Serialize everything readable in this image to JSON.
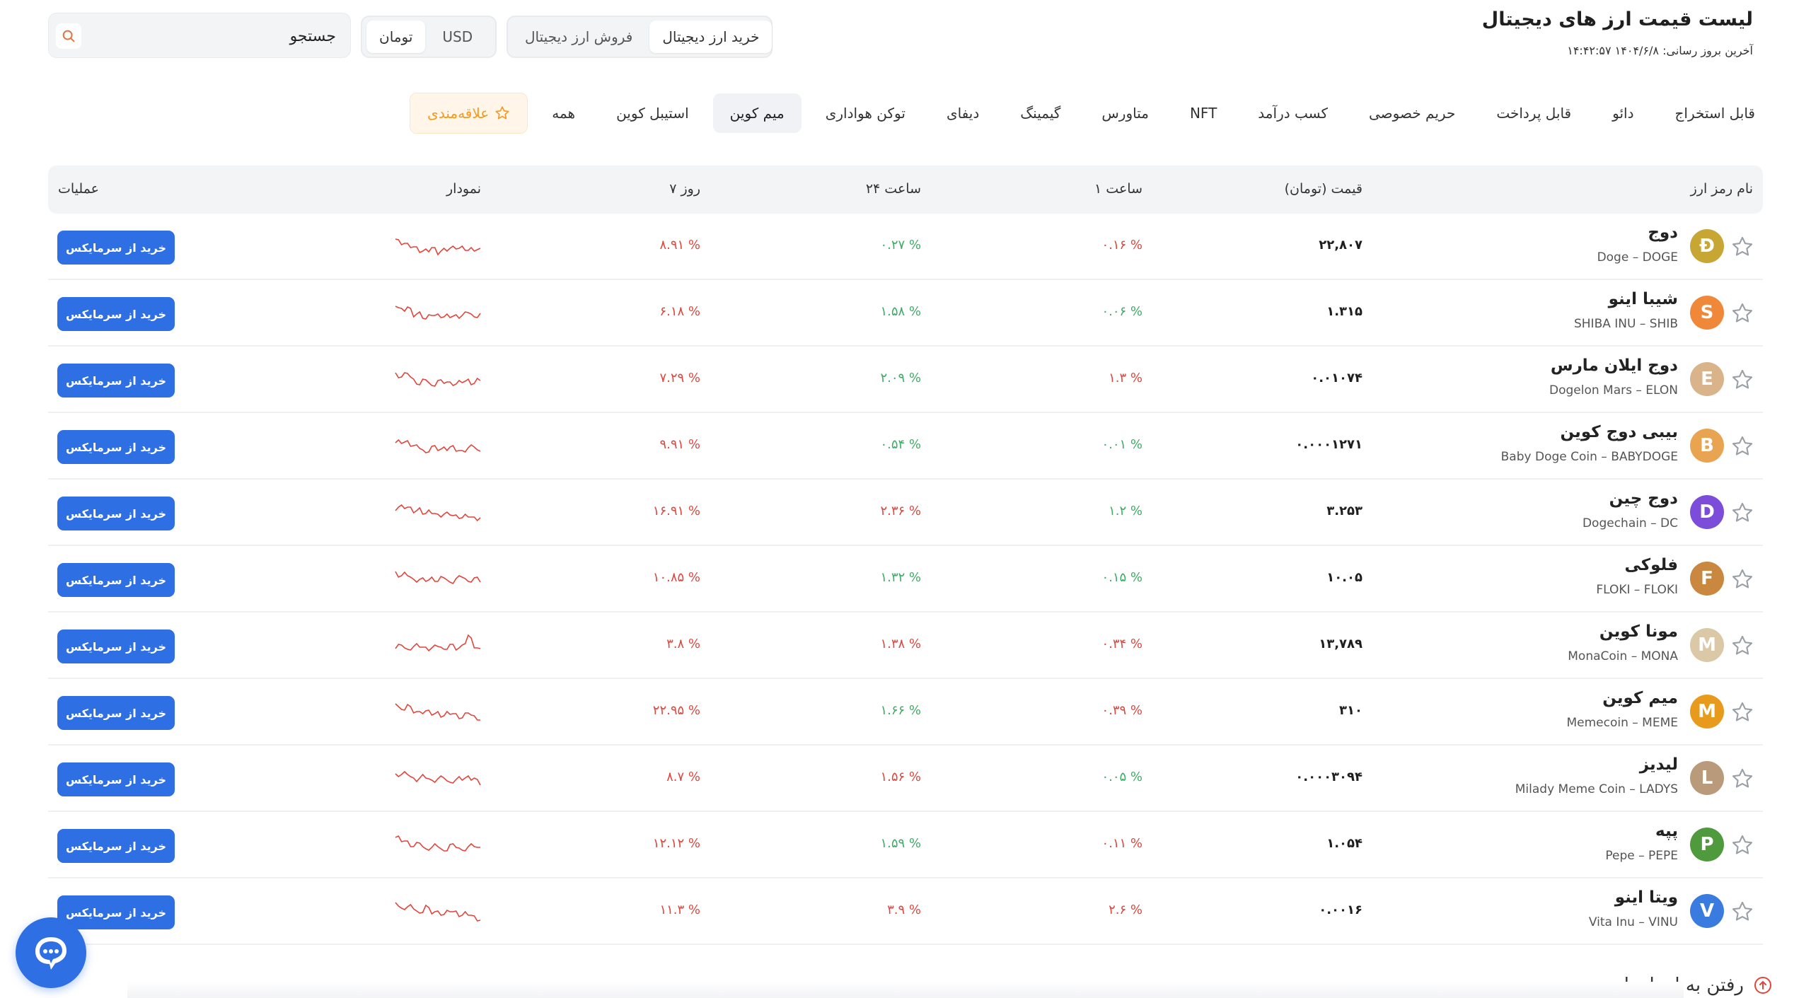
{
  "header": {
    "title": "لیست قیمت ارز های دیجیتال",
    "last_update_label": "آخرین بروز رسانی: ۱۴۰۴/۶/۸ ۱۴:۴۲:۵۷",
    "trade_toggle": {
      "buy": "خرید ارز دیجیتال",
      "sell": "فروش ارز دیجیتال"
    },
    "currency_toggle": {
      "toman": "تومان",
      "usd": "USD"
    },
    "search_placeholder": "جستجو"
  },
  "tabs": [
    {
      "label": "علاقه‌مندی",
      "icon": "star-icon",
      "style": "favorite"
    },
    {
      "label": "همه"
    },
    {
      "label": "استیبل کوین"
    },
    {
      "label": "میم کوین",
      "active": true
    },
    {
      "label": "توکن هواداری"
    },
    {
      "label": "دیفای"
    },
    {
      "label": "گیمینگ"
    },
    {
      "label": "متاورس"
    },
    {
      "label": "NFT"
    },
    {
      "label": "کسب درآمد"
    },
    {
      "label": "حریم خصوصی"
    },
    {
      "label": "قابل پرداخت"
    },
    {
      "label": "دائو"
    },
    {
      "label": "قابل استخراج"
    }
  ],
  "table": {
    "headers": {
      "name": "نام رمز ارز",
      "price": "قیمت (تومان)",
      "h1": "۱ ساعت",
      "h24": "۲۴ ساعت",
      "d7": "۷ روز",
      "chart": "نمودار",
      "ops": "عملیات"
    },
    "buy_label": "خرید از سرمایکس",
    "rows": [
      {
        "fa": "دوج",
        "en": "Doge – DOGE",
        "price": "۲۲,۸۰۷",
        "h1": "۰.۱۶ %",
        "h1_dir": "neg",
        "h24": "۰.۲۷ %",
        "h24_dir": "pos",
        "d7": "۸.۹۱ %",
        "d7_dir": "neg",
        "icon": "doge-icon",
        "icon_color": "#c8a634",
        "icon_glyph": "Ð"
      },
      {
        "fa": "شیبا اینو",
        "en": "SHIBA INU – SHIB",
        "price": "۱.۳۱۵",
        "h1": "۰.۰۶ %",
        "h1_dir": "pos",
        "h24": "۱.۵۸ %",
        "h24_dir": "pos",
        "d7": "۶.۱۸ %",
        "d7_dir": "neg",
        "icon": "shib-icon",
        "icon_color": "#f0883a",
        "icon_glyph": "S"
      },
      {
        "fa": "دوج ایلان مارس",
        "en": "Dogelon Mars – ELON",
        "price": "۰.۰۱۰۷۴",
        "h1": "۱.۳ %",
        "h1_dir": "neg",
        "h24": "۲.۰۹ %",
        "h24_dir": "pos",
        "d7": "۷.۲۹ %",
        "d7_dir": "neg",
        "icon": "elon-icon",
        "icon_color": "#d9b48a",
        "icon_glyph": "E"
      },
      {
        "fa": "بیبی دوج کوین",
        "en": "Baby Doge Coin – BABYDOGE",
        "price": "۰.۰۰۰۱۲۷۱",
        "h1": "۰.۰۱ %",
        "h1_dir": "pos",
        "h24": "۰.۵۴ %",
        "h24_dir": "pos",
        "d7": "۹.۹۱ %",
        "d7_dir": "neg",
        "icon": "babydoge-icon",
        "icon_color": "#e8a451",
        "icon_glyph": "B"
      },
      {
        "fa": "دوج چین",
        "en": "Dogechain – DC",
        "price": "۳.۲۵۳",
        "h1": "۱.۲ %",
        "h1_dir": "pos",
        "h24": "۲.۳۶ %",
        "h24_dir": "neg",
        "d7": "۱۶.۹۱ %",
        "d7_dir": "neg",
        "icon": "dogechain-icon",
        "icon_color": "#7b4dd8",
        "icon_glyph": "D"
      },
      {
        "fa": "فلوکی",
        "en": "FLOKI – FLOKI",
        "price": "۱۰.۰۵",
        "h1": "۰.۱۵ %",
        "h1_dir": "pos",
        "h24": "۱.۳۲ %",
        "h24_dir": "pos",
        "d7": "۱۰.۸۵ %",
        "d7_dir": "neg",
        "icon": "floki-icon",
        "icon_color": "#c9873f",
        "icon_glyph": "F"
      },
      {
        "fa": "مونا کوین",
        "en": "MonaCoin – MONA",
        "price": "۱۳,۷۸۹",
        "h1": "۰.۳۴ %",
        "h1_dir": "neg",
        "h24": "۱.۳۸ %",
        "h24_dir": "neg",
        "d7": "۳.۸ %",
        "d7_dir": "neg",
        "icon": "mona-icon",
        "icon_color": "#dac8a6",
        "icon_glyph": "M"
      },
      {
        "fa": "میم کوین",
        "en": "Memecoin – MEME",
        "price": "۳۱۰",
        "h1": "۰.۳۹ %",
        "h1_dir": "neg",
        "h24": "۱.۶۶ %",
        "h24_dir": "pos",
        "d7": "۲۲.۹۵ %",
        "d7_dir": "neg",
        "icon": "memecoin-icon",
        "icon_color": "#e89a1c",
        "icon_glyph": "M"
      },
      {
        "fa": "لیدیز",
        "en": "Milady Meme Coin – LADYS",
        "price": "۰.۰۰۰۳۰۹۴",
        "h1": "۰.۰۵ %",
        "h1_dir": "pos",
        "h24": "۱.۵۶ %",
        "h24_dir": "neg",
        "d7": "۸.۷ %",
        "d7_dir": "neg",
        "icon": "ladys-icon",
        "icon_color": "#b99a7a",
        "icon_glyph": "L"
      },
      {
        "fa": "پپه",
        "en": "Pepe – PEPE",
        "price": "۱.۰۵۴",
        "h1": "۰.۱۱ %",
        "h1_dir": "neg",
        "h24": "۱.۵۹ %",
        "h24_dir": "pos",
        "d7": "۱۲.۱۲ %",
        "d7_dir": "neg",
        "icon": "pepe-icon",
        "icon_color": "#4f9a3c",
        "icon_glyph": "P"
      },
      {
        "fa": "ویتا اینو",
        "en": "Vita Inu – VINU",
        "price": "۰.۰۰۱۶",
        "h1": "۲.۶ %",
        "h1_dir": "neg",
        "h24": "۳.۹ %",
        "h24_dir": "neg",
        "d7": "۱۱.۳ %",
        "d7_dir": "neg",
        "icon": "vinu-icon",
        "icon_color": "#3a7be0",
        "icon_glyph": "V"
      }
    ]
  },
  "footer": {
    "back_to_top": "رفتن به ابتدای لیست"
  },
  "colors": {
    "accent": "#2f6fe4",
    "positive": "#3aae63",
    "negative": "#e2453c",
    "favorite": "#f39a1f"
  }
}
